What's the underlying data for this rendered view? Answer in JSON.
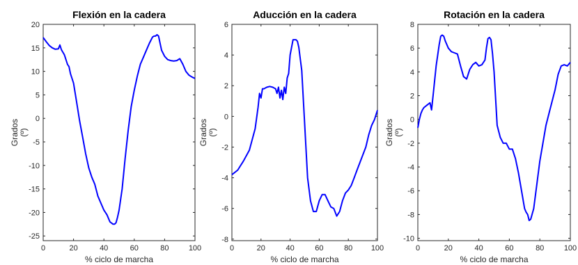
{
  "chart_data": [
    {
      "type": "line",
      "title": "Flexión en la cadera",
      "xlabel": "% ciclo de marcha",
      "ylabel": [
        "Grados",
        "(º)"
      ],
      "xlim": [
        0,
        100
      ],
      "ylim": [
        -26,
        20
      ],
      "xticks": [
        0,
        20,
        40,
        60,
        80,
        100
      ],
      "yticks": [
        20,
        15,
        10,
        5,
        0,
        -5,
        -10,
        -15,
        -20,
        -25
      ],
      "grid": false,
      "line_color": "#0000ff",
      "series": [
        {
          "x": [
            0,
            2,
            4,
            6,
            8,
            10,
            11,
            12,
            14,
            16,
            17,
            18,
            20,
            22,
            24,
            26,
            28,
            30,
            32,
            34,
            36,
            38,
            40,
            42,
            44,
            46,
            47,
            48,
            49,
            50,
            52,
            54,
            56,
            58,
            60,
            62,
            64,
            66,
            68,
            70,
            72,
            73,
            74,
            75,
            76,
            78,
            80,
            82,
            84,
            86,
            88,
            90,
            92,
            94,
            96,
            98,
            100
          ],
          "y": [
            17.2,
            16.3,
            15.5,
            15.0,
            14.7,
            14.8,
            15.6,
            14.6,
            13.5,
            11.5,
            11.0,
            9.5,
            7.5,
            3.5,
            -0.5,
            -4.0,
            -7.5,
            -10.5,
            -12.5,
            -14.0,
            -16.5,
            -18.0,
            -19.5,
            -20.5,
            -22.0,
            -22.5,
            -22.5,
            -22.2,
            -21.0,
            -19.5,
            -15.0,
            -8.5,
            -2.5,
            2.5,
            6.0,
            9.0,
            11.5,
            13.0,
            14.5,
            16.0,
            17.3,
            17.5,
            17.5,
            17.8,
            17.5,
            14.5,
            13.2,
            12.5,
            12.3,
            12.2,
            12.3,
            12.7,
            11.5,
            10.0,
            9.2,
            8.8,
            8.5
          ]
        }
      ]
    },
    {
      "type": "line",
      "title": "Aducción en la cadera",
      "xlabel": "% ciclo de marcha",
      "ylabel": [
        "Grados",
        "(º)"
      ],
      "xlim": [
        0,
        100
      ],
      "ylim": [
        -8.1,
        6
      ],
      "xticks": [
        0,
        20,
        40,
        60,
        80,
        100
      ],
      "yticks": [
        6,
        4,
        2,
        0,
        -2,
        -4,
        -6,
        -8
      ],
      "grid": false,
      "line_color": "#0000ff",
      "series": [
        {
          "x": [
            0,
            4,
            8,
            12,
            16,
            18,
            19,
            20,
            21,
            22,
            24,
            26,
            28,
            30,
            31,
            32,
            33,
            34,
            35,
            36,
            37,
            38,
            39,
            40,
            41,
            42,
            44,
            45,
            46,
            48,
            50,
            52,
            54,
            56,
            58,
            60,
            62,
            64,
            66,
            68,
            70,
            72,
            74,
            76,
            78,
            80,
            82,
            84,
            86,
            88,
            90,
            92,
            94,
            96,
            98,
            100
          ],
          "y": [
            -3.8,
            -3.5,
            -2.9,
            -2.2,
            -0.8,
            0.6,
            1.5,
            1.2,
            1.8,
            1.8,
            1.9,
            1.95,
            1.9,
            1.8,
            1.5,
            1.9,
            1.2,
            1.7,
            1.1,
            1.9,
            1.5,
            2.5,
            2.8,
            4.0,
            4.5,
            5.0,
            5.0,
            4.9,
            4.5,
            3.0,
            -0.5,
            -4.0,
            -5.5,
            -6.2,
            -6.2,
            -5.5,
            -5.1,
            -5.1,
            -5.5,
            -5.9,
            -6.0,
            -6.5,
            -6.2,
            -5.5,
            -5.0,
            -4.8,
            -4.5,
            -4.0,
            -3.5,
            -3.0,
            -2.5,
            -2.0,
            -1.2,
            -0.6,
            -0.2,
            0.4
          ]
        }
      ]
    },
    {
      "type": "line",
      "title": "Rotación en la cadera",
      "xlabel": "% ciclo de marcha",
      "ylabel": [
        "Grados",
        "(º)"
      ],
      "xlim": [
        0,
        100
      ],
      "ylim": [
        -10.2,
        8
      ],
      "xticks": [
        0,
        20,
        40,
        60,
        80,
        100
      ],
      "yticks": [
        8,
        6,
        4,
        2,
        0,
        -2,
        -4,
        -6,
        -8,
        -10
      ],
      "grid": false,
      "line_color": "#0000ff",
      "series": [
        {
          "x": [
            0,
            1,
            2,
            3,
            4,
            6,
            8,
            9,
            10,
            12,
            14,
            15,
            16,
            17,
            18,
            20,
            22,
            24,
            26,
            28,
            30,
            32,
            34,
            36,
            38,
            40,
            42,
            44,
            45,
            46,
            47,
            48,
            49,
            50,
            52,
            54,
            56,
            58,
            60,
            62,
            64,
            66,
            68,
            70,
            71,
            72,
            73,
            74,
            76,
            78,
            80,
            82,
            84,
            86,
            88,
            90,
            92,
            94,
            96,
            98,
            100
          ],
          "y": [
            -0.7,
            0.0,
            0.5,
            0.8,
            1.0,
            1.2,
            1.4,
            0.8,
            2.0,
            4.5,
            6.3,
            7.0,
            7.1,
            7.0,
            6.6,
            6.0,
            5.7,
            5.6,
            5.5,
            4.5,
            3.6,
            3.4,
            4.2,
            4.6,
            4.8,
            4.5,
            4.6,
            5.0,
            6.0,
            6.8,
            6.9,
            6.7,
            5.5,
            4.0,
            -0.5,
            -1.5,
            -2.0,
            -2.0,
            -2.5,
            -2.5,
            -3.3,
            -4.5,
            -6.0,
            -7.5,
            -7.8,
            -8.0,
            -8.5,
            -8.4,
            -7.5,
            -5.5,
            -3.5,
            -2.0,
            -0.5,
            0.5,
            1.5,
            2.5,
            3.8,
            4.5,
            4.6,
            4.5,
            4.8
          ]
        }
      ]
    }
  ]
}
